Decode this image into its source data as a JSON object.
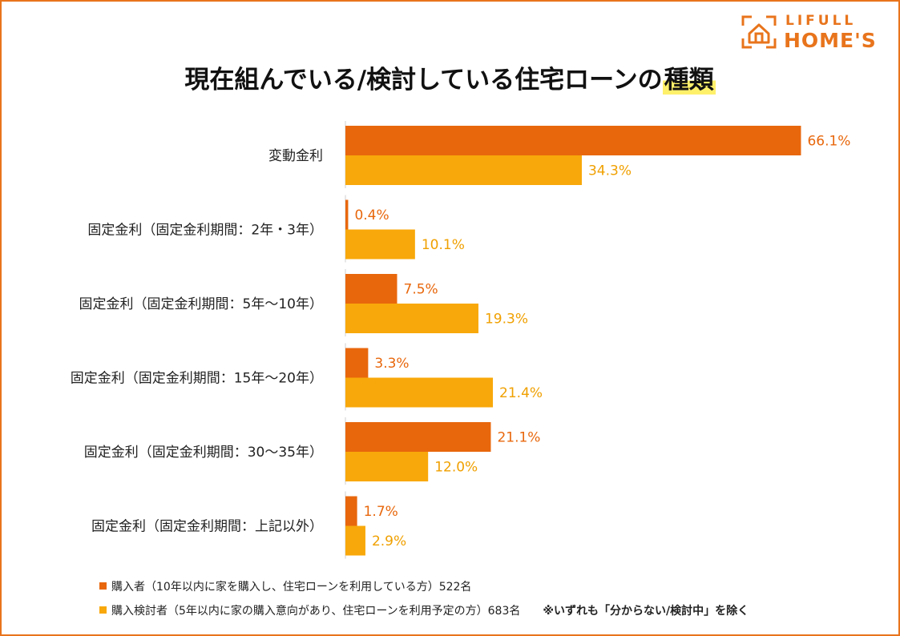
{
  "brand": {
    "logo_top": "LIFULL",
    "logo_bottom": "HOME'S",
    "color": "#e8741c"
  },
  "title_main": "現在組んでいる/検討している住宅ローンの",
  "title_highlight": "種類",
  "legend": {
    "series1": "購入者（10年以内に家を購入し、住宅ローンを利用している方）522名",
    "series2": "購入検討者（5年以内に家の購入意向があり、住宅ローンを利用予定の方）683名",
    "note": "※いずれも「分からない/検討中」を除く"
  },
  "chart_data": {
    "type": "bar",
    "orientation": "horizontal",
    "title": "現在組んでいる/検討している住宅ローンの種類",
    "categories": [
      "変動金利",
      "固定金利（固定金利期間：2年・3年）",
      "固定金利（固定金利期間：5年〜10年）",
      "固定金利（固定金利期間：15年〜20年）",
      "固定金利（固定金利期間：30〜35年）",
      "固定金利（固定金利期間：上記以外）"
    ],
    "series": [
      {
        "name": "購入者（10年以内に家を購入し、住宅ローンを利用している方）522名",
        "color": "#e8670c",
        "values": [
          66.1,
          0.4,
          7.5,
          3.3,
          21.1,
          1.7
        ],
        "labels": [
          "66.1%",
          "0.4%",
          "7.5%",
          "3.3%",
          "21.1%",
          "1.7%"
        ]
      },
      {
        "name": "購入検討者（5年以内に家の購入意向があり、住宅ローンを利用予定の方）683名",
        "color": "#f8a80a",
        "values": [
          34.3,
          10.1,
          19.3,
          21.4,
          12.0,
          2.9
        ],
        "labels": [
          "34.3%",
          "10.1%",
          "19.3%",
          "21.4%",
          "12.0%",
          "2.9%"
        ]
      }
    ],
    "xlim": [
      0,
      70
    ],
    "unit": "%",
    "grid": false,
    "legend_position": "bottom-left"
  }
}
